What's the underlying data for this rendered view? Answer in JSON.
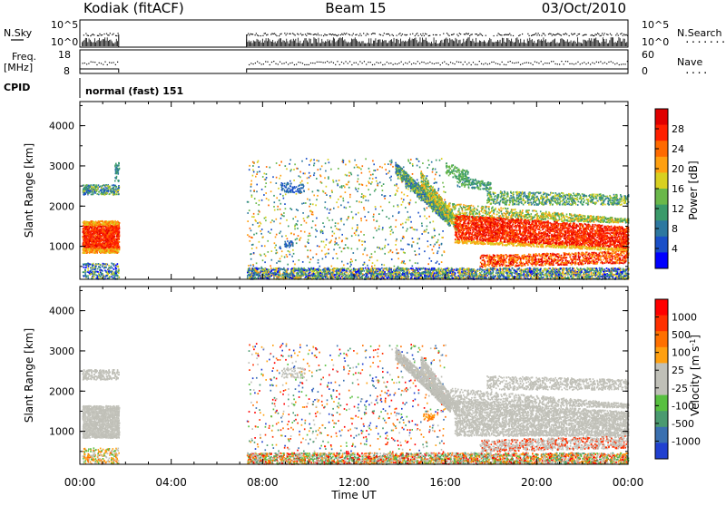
{
  "header": {
    "station": "Kodiak (fitACF)",
    "beam": "Beam 15",
    "date": "03/Oct/2010"
  },
  "panels": {
    "nsky": {
      "left_label": "N.Sky",
      "right_label": "N.Search",
      "right_dots": "·········",
      "tick_top": "10^5",
      "tick_bottom": "10^0",
      "rtick_top": "10^5",
      "rtick_bottom": "10^0"
    },
    "freq": {
      "left_label_1": "Freq.",
      "left_label_2": "[MHz]",
      "tick_top": "18",
      "tick_bottom": "8",
      "right_label": "Nave",
      "right_dots": "····",
      "rtick_top": "60",
      "rtick_bottom": "0"
    },
    "cpid": {
      "left_label": "CPID",
      "text": "normal (fast) 151"
    }
  },
  "chart_data": [
    {
      "type": "heatmap",
      "name": "power",
      "ylabel": "Slant Range [km]",
      "ylim": [
        180,
        4600
      ],
      "yticks": [
        "1000",
        "2000",
        "3000",
        "4000"
      ],
      "xlim": [
        0,
        24
      ],
      "colorbar": {
        "label": "Power [dB]",
        "ticks": [
          "28",
          "24",
          "20",
          "16",
          "12",
          "8",
          "4"
        ],
        "colors": [
          "#0000ff",
          "#1a4fc8",
          "#2d78a0",
          "#3a9a6a",
          "#6ab84a",
          "#d8d020",
          "#ffa010",
          "#ff6a00",
          "#ff2000",
          "#e00000"
        ]
      }
    },
    {
      "type": "heatmap",
      "name": "velocity",
      "ylabel": "Slant Range [km]",
      "ylim": [
        180,
        4600
      ],
      "yticks": [
        "1000",
        "2000",
        "3000",
        "4000"
      ],
      "xlim": [
        0,
        24
      ],
      "xlabel": "Time UT",
      "xticks": [
        "00:00",
        "04:00",
        "08:00",
        "12:00",
        "16:00",
        "20:00",
        "00:00"
      ],
      "colorbar": {
        "label": "Velocity [m s",
        "label_sup": "-1",
        "label_end": "]",
        "ticks": [
          "1000",
          "500",
          "100",
          "25",
          "-25",
          "-100",
          "-500",
          "-1000"
        ],
        "colors": [
          "#2040d0",
          "#3a70b0",
          "#4a9a70",
          "#58c040",
          "#c0c0b8",
          "#c0c0b8",
          "#ffa010",
          "#ff7000",
          "#ff3000",
          "#ff0000"
        ]
      }
    }
  ]
}
